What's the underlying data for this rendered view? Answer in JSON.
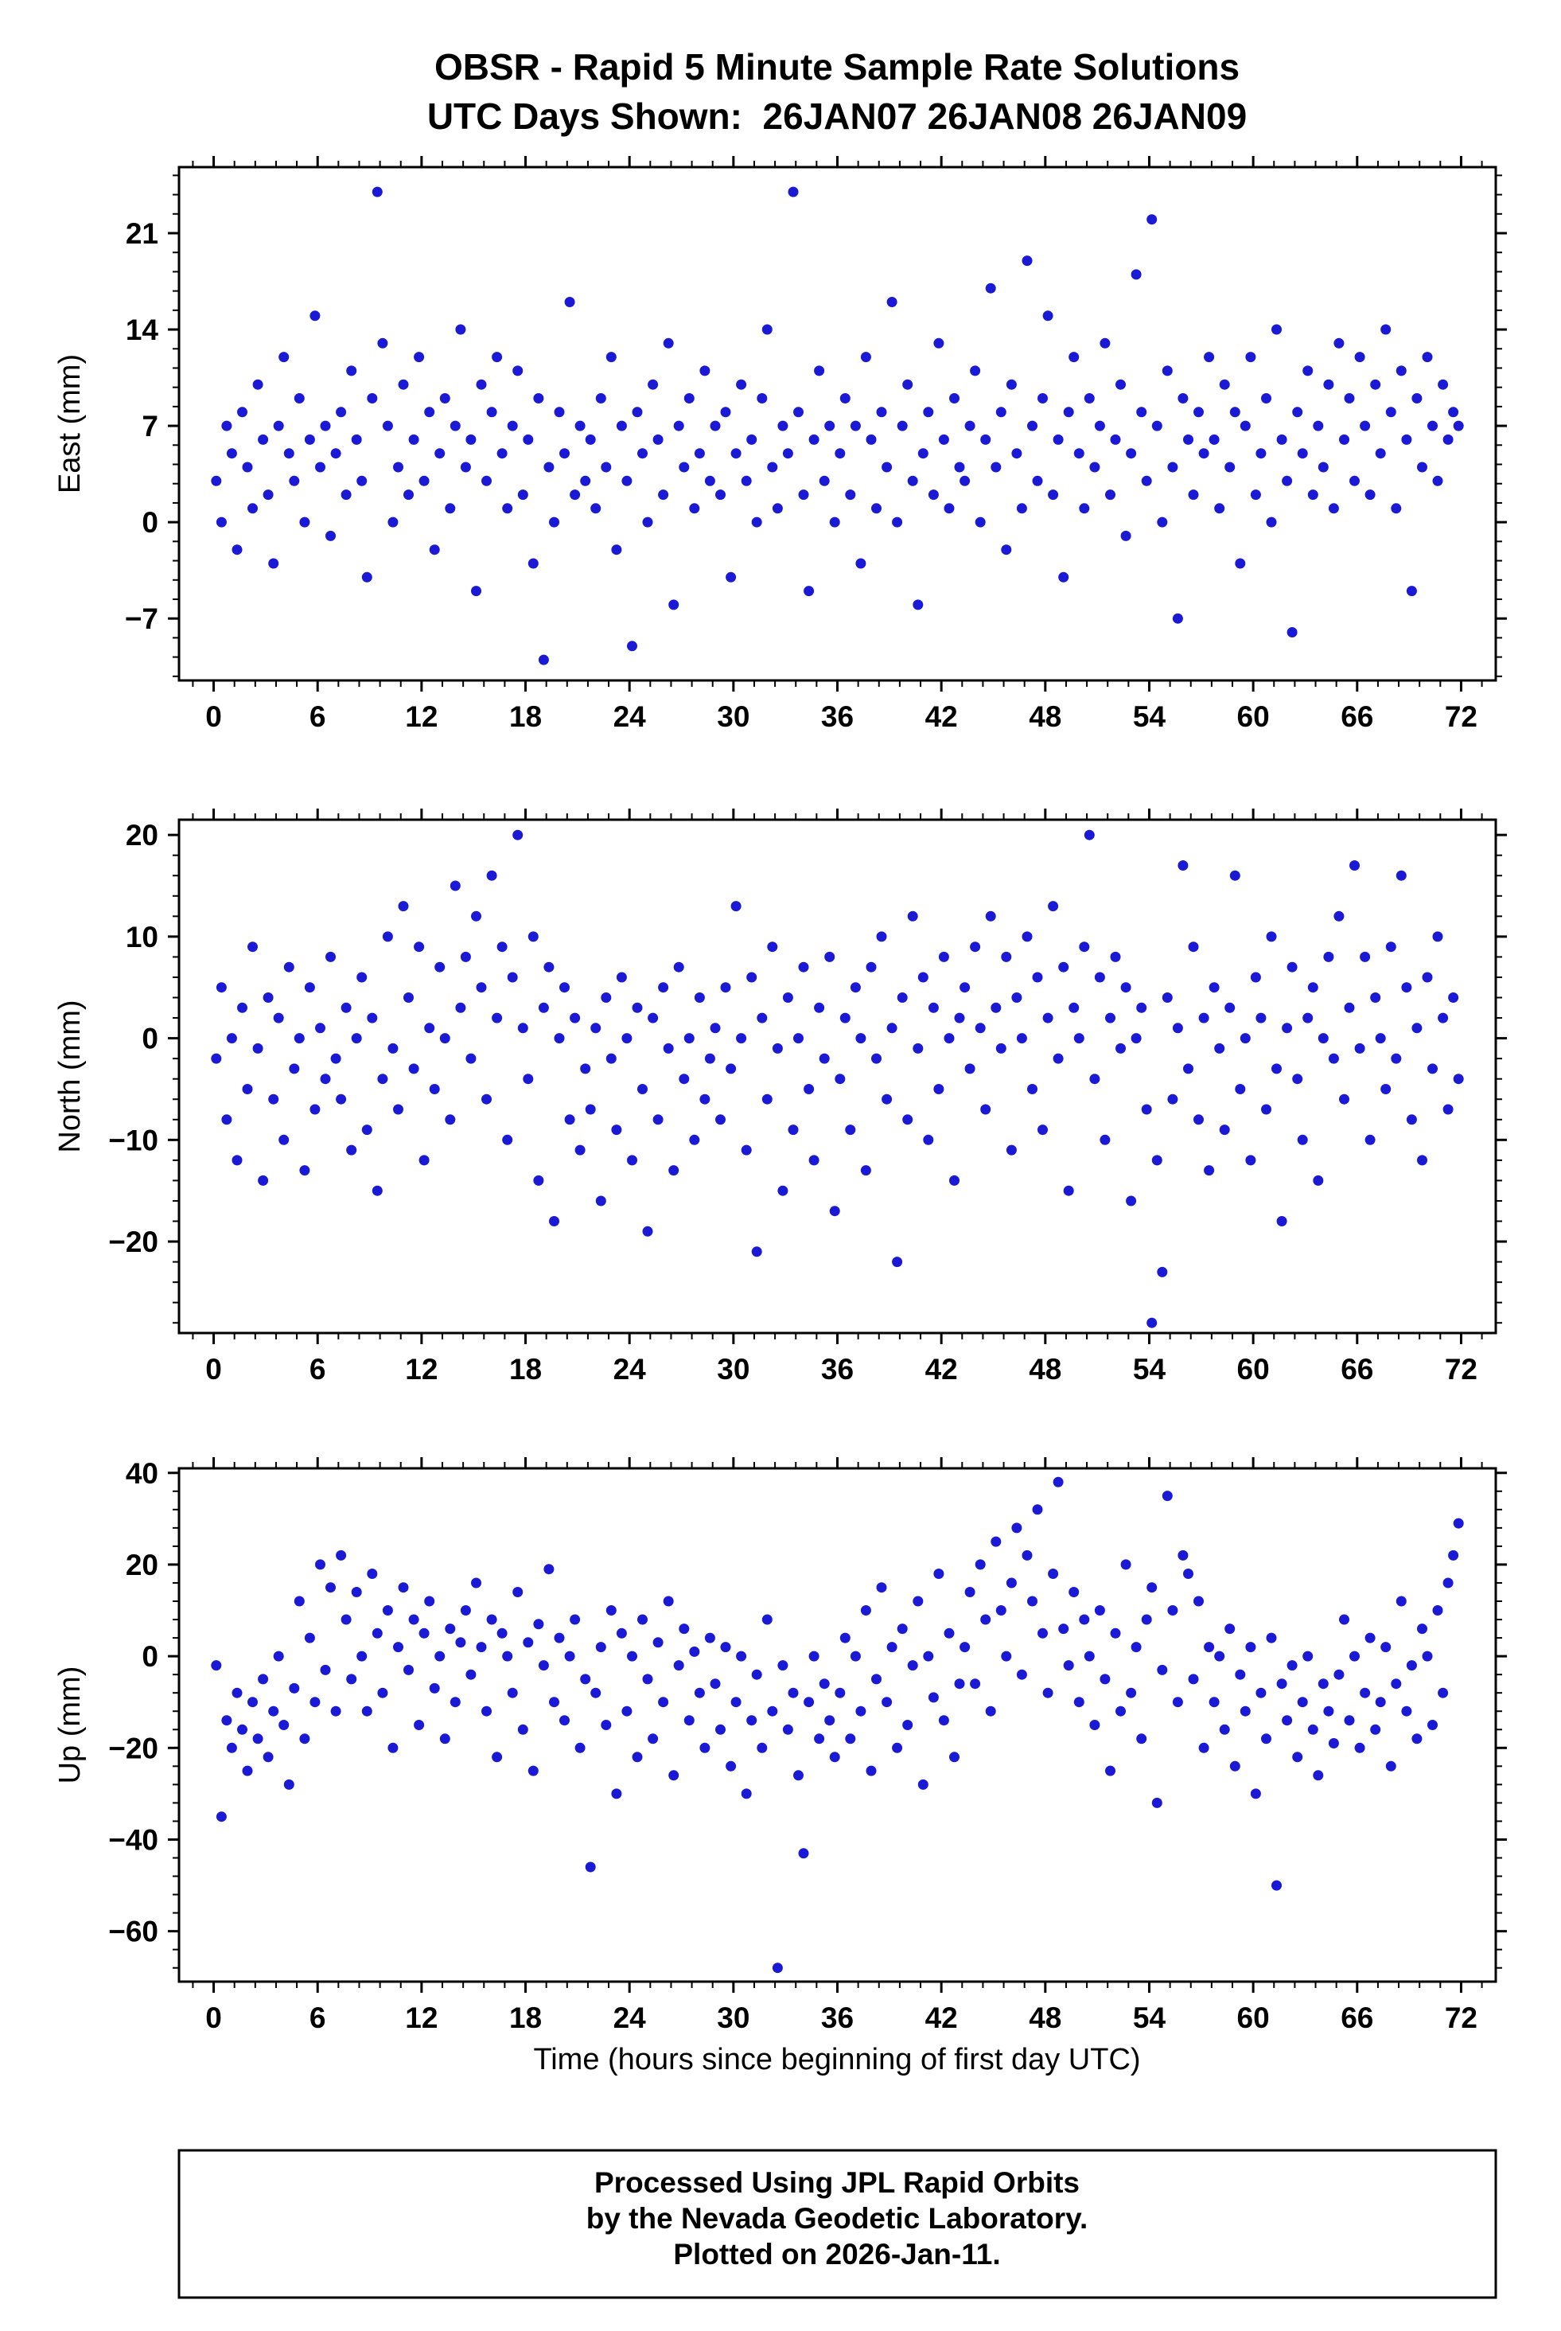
{
  "title": {
    "line1": "OBSR - Rapid 5 Minute Sample Rate Solutions",
    "line2": "UTC Days Shown:  26JAN07 26JAN08 26JAN09"
  },
  "footer": {
    "line1": "Processed Using JPL Rapid Orbits",
    "line2": "by the Nevada Geodetic Laboratory.",
    "line3": "Plotted on 2026-Jan-11."
  },
  "chart_data": {
    "type": "scatter",
    "point_color": "#1a1ad6",
    "point_radius_px": 6.5,
    "xlabel": "Time (hours since beginning of first day UTC)",
    "xticks": [
      0,
      6,
      12,
      18,
      24,
      30,
      36,
      42,
      48,
      54,
      60,
      66,
      72
    ],
    "x_minor_step": 1.2,
    "xlim": [
      -2,
      74
    ],
    "x_rule": {
      "start": 0.15,
      "step": 0.3,
      "count": 240
    },
    "panels": [
      {
        "ylabel": "East (mm)",
        "yticks": [
          -7,
          0,
          7,
          14,
          21
        ],
        "y_minor_step": 1.4,
        "ylim": [
          -11.5,
          25.8
        ],
        "y": [
          3,
          0,
          7,
          5,
          -2,
          8,
          4,
          1,
          10,
          6,
          2,
          -3,
          7,
          12,
          5,
          3,
          9,
          0,
          6,
          15,
          4,
          7,
          -1,
          5,
          8,
          2,
          11,
          6,
          3,
          -4,
          9,
          24,
          13,
          7,
          0,
          4,
          10,
          2,
          6,
          12,
          3,
          8,
          -2,
          5,
          9,
          1,
          7,
          14,
          4,
          6,
          -5,
          10,
          3,
          8,
          12,
          5,
          1,
          7,
          11,
          2,
          6,
          -3,
          9,
          -10,
          4,
          0,
          8,
          5,
          16,
          2,
          7,
          3,
          6,
          1,
          9,
          4,
          12,
          -2,
          7,
          3,
          -9,
          8,
          5,
          0,
          10,
          6,
          2,
          13,
          -6,
          7,
          4,
          9,
          1,
          5,
          11,
          3,
          7,
          2,
          8,
          -4,
          5,
          10,
          3,
          6,
          0,
          9,
          14,
          4,
          1,
          7,
          5,
          24,
          8,
          2,
          -5,
          6,
          11,
          3,
          7,
          0,
          5,
          9,
          2,
          7,
          -3,
          12,
          6,
          1,
          8,
          4,
          16,
          0,
          7,
          10,
          3,
          -6,
          5,
          8,
          2,
          13,
          6,
          1,
          9,
          4,
          3,
          7,
          11,
          0,
          6,
          17,
          4,
          8,
          -2,
          10,
          5,
          1,
          19,
          7,
          3,
          9,
          15,
          2,
          6,
          -4,
          8,
          12,
          5,
          1,
          9,
          4,
          7,
          13,
          2,
          6,
          10,
          -1,
          5,
          18,
          8,
          3,
          22,
          7,
          0,
          11,
          4,
          -7,
          9,
          6,
          2,
          8,
          5,
          12,
          6,
          1,
          10,
          4,
          8,
          -3,
          7,
          12,
          2,
          5,
          9,
          0,
          14,
          6,
          3,
          -8,
          8,
          5,
          11,
          2,
          7,
          4,
          10,
          1,
          13,
          6,
          9,
          3,
          12,
          7,
          2,
          10,
          5,
          14,
          8,
          1,
          11,
          6,
          -5,
          9,
          4,
          12,
          7,
          3,
          10,
          6,
          8,
          7
        ]
      },
      {
        "ylabel": "North (mm)",
        "yticks": [
          -20,
          -10,
          0,
          10,
          20
        ],
        "y_minor_step": 2,
        "ylim": [
          -29,
          21.5
        ],
        "y": [
          -2,
          5,
          -8,
          0,
          -12,
          3,
          -5,
          9,
          -1,
          -14,
          4,
          -6,
          2,
          -10,
          7,
          -3,
          0,
          -13,
          5,
          -7,
          1,
          -4,
          8,
          -2,
          -6,
          3,
          -11,
          0,
          6,
          -9,
          2,
          -15,
          -4,
          10,
          -1,
          -7,
          13,
          4,
          -3,
          9,
          -12,
          1,
          -5,
          7,
          0,
          -8,
          15,
          3,
          8,
          -2,
          12,
          5,
          -6,
          16,
          2,
          9,
          -10,
          6,
          20,
          1,
          -4,
          10,
          -14,
          3,
          7,
          -18,
          0,
          5,
          -8,
          2,
          -11,
          -3,
          -7,
          1,
          -16,
          4,
          -2,
          -9,
          6,
          0,
          -12,
          3,
          -5,
          -19,
          2,
          -8,
          5,
          -1,
          -13,
          7,
          -4,
          0,
          -10,
          4,
          -6,
          -2,
          1,
          -8,
          5,
          -3,
          13,
          0,
          -11,
          6,
          -21,
          2,
          -6,
          9,
          -1,
          -15,
          4,
          -9,
          0,
          7,
          -5,
          -12,
          3,
          -2,
          8,
          -17,
          -4,
          2,
          -9,
          5,
          0,
          -13,
          7,
          -2,
          10,
          -6,
          1,
          -22,
          4,
          -8,
          12,
          -1,
          6,
          -10,
          3,
          -5,
          8,
          0,
          -14,
          2,
          5,
          -3,
          9,
          1,
          -7,
          12,
          3,
          -1,
          8,
          -11,
          4,
          0,
          10,
          -5,
          6,
          -9,
          2,
          13,
          -2,
          7,
          -15,
          3,
          0,
          9,
          20,
          -4,
          6,
          -10,
          2,
          8,
          -1,
          5,
          -16,
          0,
          3,
          -7,
          -28,
          -12,
          -23,
          4,
          -6,
          1,
          17,
          -3,
          9,
          -8,
          2,
          -13,
          5,
          -1,
          -9,
          3,
          16,
          -5,
          0,
          -12,
          6,
          2,
          -7,
          10,
          -3,
          -18,
          1,
          7,
          -4,
          -10,
          2,
          5,
          -14,
          0,
          8,
          -2,
          12,
          -6,
          3,
          17,
          -1,
          8,
          -10,
          4,
          0,
          -5,
          9,
          -2,
          16,
          5,
          -8,
          1,
          -12,
          6,
          -3,
          10,
          2,
          -7,
          4,
          -4
        ]
      },
      {
        "ylabel": "Up (mm)",
        "yticks": [
          -60,
          -40,
          -20,
          0,
          20,
          40
        ],
        "y_minor_step": 4,
        "ylim": [
          -71,
          41
        ],
        "y": [
          -2,
          -35,
          -14,
          -20,
          -8,
          -16,
          -25,
          -10,
          -18,
          -5,
          -22,
          -12,
          0,
          -15,
          -28,
          -7,
          12,
          -18,
          4,
          -10,
          20,
          -3,
          15,
          -12,
          22,
          8,
          -5,
          14,
          0,
          -12,
          18,
          5,
          -8,
          10,
          -20,
          2,
          15,
          -3,
          8,
          -15,
          5,
          12,
          -7,
          0,
          -18,
          6,
          -10,
          3,
          10,
          -4,
          16,
          2,
          -12,
          8,
          -22,
          5,
          0,
          -8,
          14,
          -16,
          3,
          -25,
          7,
          -2,
          19,
          -10,
          4,
          -14,
          0,
          8,
          -20,
          -5,
          -46,
          -8,
          2,
          -15,
          10,
          -30,
          5,
          -12,
          0,
          -22,
          8,
          -5,
          -18,
          3,
          -10,
          12,
          -26,
          -2,
          6,
          -14,
          1,
          -8,
          -20,
          4,
          -6,
          -16,
          2,
          -24,
          -10,
          0,
          -30,
          -14,
          -4,
          -20,
          8,
          -12,
          -68,
          -2,
          -16,
          -8,
          -26,
          -43,
          -10,
          0,
          -18,
          -6,
          -14,
          -22,
          -8,
          4,
          -18,
          0,
          -12,
          10,
          -25,
          -5,
          15,
          -10,
          2,
          -20,
          6,
          -15,
          -2,
          12,
          -28,
          0,
          -9,
          18,
          -14,
          5,
          -22,
          -6,
          2,
          14,
          -6,
          20,
          8,
          -12,
          25,
          10,
          0,
          16,
          28,
          -4,
          22,
          12,
          32,
          5,
          -8,
          18,
          38,
          6,
          -2,
          14,
          -10,
          8,
          0,
          -15,
          10,
          -5,
          -25,
          5,
          -12,
          20,
          -8,
          2,
          -18,
          8,
          15,
          -32,
          -3,
          35,
          10,
          -10,
          22,
          18,
          -5,
          12,
          -20,
          2,
          -10,
          0,
          -16,
          6,
          -24,
          -4,
          -12,
          2,
          -30,
          -8,
          -18,
          4,
          -50,
          -6,
          -14,
          -2,
          -22,
          -10,
          0,
          -16,
          -26,
          -6,
          -12,
          -19,
          -4,
          8,
          -14,
          0,
          -20,
          -8,
          4,
          -16,
          -10,
          2,
          -24,
          -6,
          12,
          -12,
          -2,
          -18,
          6,
          0,
          -15,
          10,
          -8,
          16,
          22,
          29
        ]
      }
    ]
  }
}
